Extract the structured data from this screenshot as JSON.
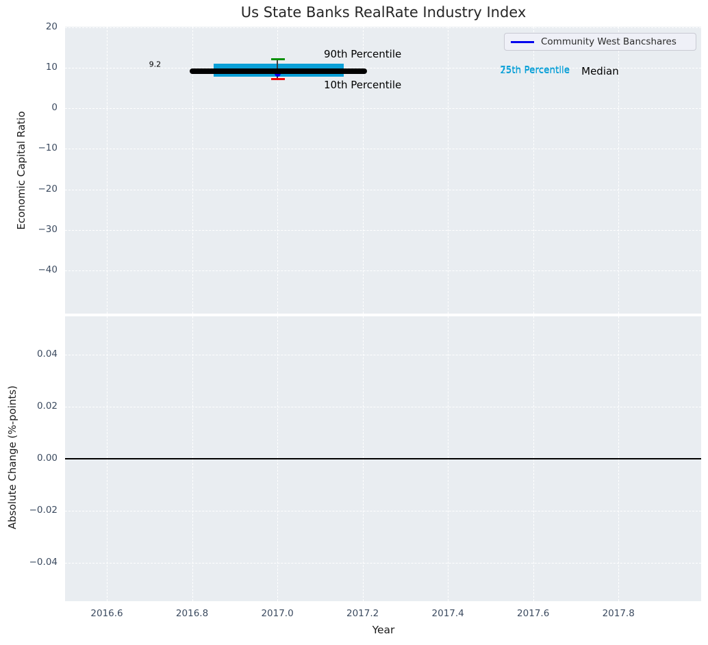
{
  "chart_data": {
    "type": "box",
    "title": "Us State Banks RealRate Industry Index",
    "xlabel": "Year",
    "xlim": [
      2016.502,
      2017.994
    ],
    "xticks": [
      {
        "v": 2016.6,
        "label": "2016.6"
      },
      {
        "v": 2016.8,
        "label": "2016.8"
      },
      {
        "v": 2017.0,
        "label": "2017.0"
      },
      {
        "v": 2017.2,
        "label": "2017.2"
      },
      {
        "v": 2017.4,
        "label": "2017.4"
      },
      {
        "v": 2017.6,
        "label": "2017.6"
      },
      {
        "v": 2017.8,
        "label": "2017.8"
      }
    ],
    "grid": {
      "color": "#ffffff",
      "style": "dashed",
      "on": true
    },
    "plot_background": "#e9edf1",
    "legend": {
      "position": "upper-right",
      "entries": [
        {
          "label": "Community West Bancshares",
          "color": "#0000ee",
          "marker": "line"
        }
      ]
    },
    "top_panel": {
      "ylabel": "Economic Capital Ratio",
      "ylim": [
        -50.6,
        20.1
      ],
      "yticks": [
        {
          "v": 20,
          "label": "20"
        },
        {
          "v": 10,
          "label": "10"
        },
        {
          "v": 0,
          "label": "0"
        },
        {
          "v": -10,
          "label": "−10"
        },
        {
          "v": -20,
          "label": "−20"
        },
        {
          "v": -30,
          "label": "−30"
        },
        {
          "v": -40,
          "label": "−40"
        }
      ],
      "percentile_box": {
        "x_start": 2016.85,
        "x_end": 2017.155,
        "p25": 7.8,
        "p75": 11.0,
        "color": "#0aa0d7"
      },
      "median_line": {
        "x_start": 2016.795,
        "x_end": 2017.21,
        "value": 9.2,
        "color": "#000000"
      },
      "whisker": {
        "x": 2017.0,
        "p90": 12.1,
        "p10": 7.2,
        "cap_x_start": 2016.985,
        "cap_x_end": 2017.018,
        "p90_color": "#0a9008",
        "p10_color": "#f40000",
        "line_color": "#3a3a3a"
      },
      "company_point": {
        "series": "Community West Bancshares",
        "x": 2017.0,
        "value": 8.6,
        "color": "#0000ee"
      },
      "annotations": [
        {
          "id": "median-value",
          "text": "9.2",
          "x": 2016.713,
          "y": 10.75,
          "color": "#000000",
          "size": 11
        },
        {
          "id": "90th-percentile",
          "text": "90th Percentile",
          "x": 2017.2,
          "y": 13.4,
          "color": "#000000",
          "size": 15
        },
        {
          "id": "10th-percentile",
          "text": "10th Percentile",
          "x": 2017.2,
          "y": 5.7,
          "color": "#000000",
          "size": 15
        },
        {
          "id": "75th-percentile",
          "text": "75th Percentile",
          "x": 2017.604,
          "y": 9.45,
          "color": "#0aa0d7",
          "size": 13.5
        },
        {
          "id": "25th-percentile",
          "text": "25th Percentile",
          "x": 2017.604,
          "y": 9.22,
          "color": "#0aa0d7",
          "size": 13.5
        },
        {
          "id": "median-label",
          "text": "Median",
          "x": 2017.757,
          "y": 9.2,
          "color": "#000000",
          "size": 15
        }
      ]
    },
    "bottom_panel": {
      "ylabel": "Absolute Change (%-points)",
      "ylim": [
        -0.0547,
        0.0547
      ],
      "yticks": [
        {
          "v": 0.04,
          "label": "0.04"
        },
        {
          "v": 0.02,
          "label": "0.02"
        },
        {
          "v": 0,
          "label": "0.00"
        },
        {
          "v": -0.02,
          "label": "−0.02"
        },
        {
          "v": -0.04,
          "label": "−0.04"
        }
      ],
      "zero_line": {
        "value": 0,
        "color": "#000000"
      }
    }
  }
}
